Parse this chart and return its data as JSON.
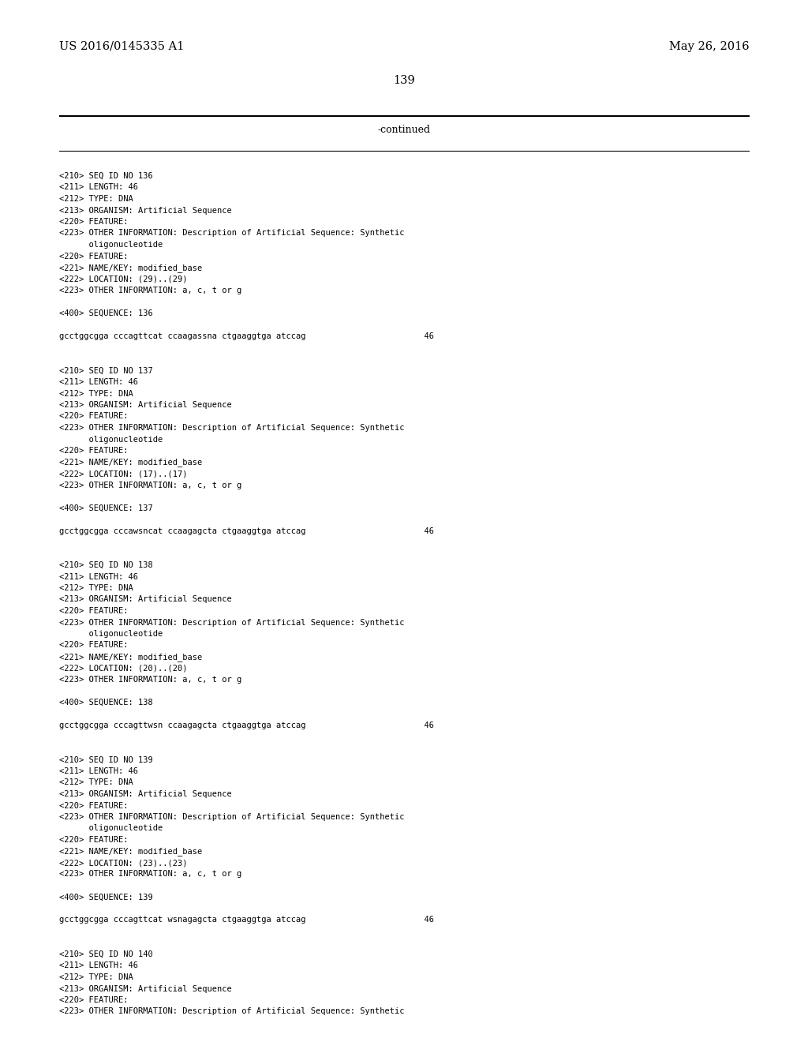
{
  "header_left": "US 2016/0145335 A1",
  "header_right": "May 26, 2016",
  "page_number": "139",
  "continued_text": "-continued",
  "background_color": "#ffffff",
  "text_color": "#000000",
  "fig_width": 10.24,
  "fig_height": 13.2,
  "dpi": 100,
  "lines": [
    "<210> SEQ ID NO 136",
    "<211> LENGTH: 46",
    "<212> TYPE: DNA",
    "<213> ORGANISM: Artificial Sequence",
    "<220> FEATURE:",
    "<223> OTHER INFORMATION: Description of Artificial Sequence: Synthetic",
    "      oligonucleotide",
    "<220> FEATURE:",
    "<221> NAME/KEY: modified_base",
    "<222> LOCATION: (29)..(29)",
    "<223> OTHER INFORMATION: a, c, t or g",
    "",
    "<400> SEQUENCE: 136",
    "",
    "gcctggcgga cccagttcat ccaagassna ctgaaggtga atccag                        46",
    "",
    "",
    "<210> SEQ ID NO 137",
    "<211> LENGTH: 46",
    "<212> TYPE: DNA",
    "<213> ORGANISM: Artificial Sequence",
    "<220> FEATURE:",
    "<223> OTHER INFORMATION: Description of Artificial Sequence: Synthetic",
    "      oligonucleotide",
    "<220> FEATURE:",
    "<221> NAME/KEY: modified_base",
    "<222> LOCATION: (17)..(17)",
    "<223> OTHER INFORMATION: a, c, t or g",
    "",
    "<400> SEQUENCE: 137",
    "",
    "gcctggcgga cccawsncat ccaagagcta ctgaaggtga atccag                        46",
    "",
    "",
    "<210> SEQ ID NO 138",
    "<211> LENGTH: 46",
    "<212> TYPE: DNA",
    "<213> ORGANISM: Artificial Sequence",
    "<220> FEATURE:",
    "<223> OTHER INFORMATION: Description of Artificial Sequence: Synthetic",
    "      oligonucleotide",
    "<220> FEATURE:",
    "<221> NAME/KEY: modified_base",
    "<222> LOCATION: (20)..(20)",
    "<223> OTHER INFORMATION: a, c, t or g",
    "",
    "<400> SEQUENCE: 138",
    "",
    "gcctggcgga cccagttwsn ccaagagcta ctgaaggtga atccag                        46",
    "",
    "",
    "<210> SEQ ID NO 139",
    "<211> LENGTH: 46",
    "<212> TYPE: DNA",
    "<213> ORGANISM: Artificial Sequence",
    "<220> FEATURE:",
    "<223> OTHER INFORMATION: Description of Artificial Sequence: Synthetic",
    "      oligonucleotide",
    "<220> FEATURE:",
    "<221> NAME/KEY: modified_base",
    "<222> LOCATION: (23)..(23)",
    "<223> OTHER INFORMATION: a, c, t or g",
    "",
    "<400> SEQUENCE: 139",
    "",
    "gcctggcgga cccagttcat wsnagagcta ctgaaggtga atccag                        46",
    "",
    "",
    "<210> SEQ ID NO 140",
    "<211> LENGTH: 46",
    "<212> TYPE: DNA",
    "<213> ORGANISM: Artificial Sequence",
    "<220> FEATURE:",
    "<223> OTHER INFORMATION: Description of Artificial Sequence: Synthetic"
  ]
}
